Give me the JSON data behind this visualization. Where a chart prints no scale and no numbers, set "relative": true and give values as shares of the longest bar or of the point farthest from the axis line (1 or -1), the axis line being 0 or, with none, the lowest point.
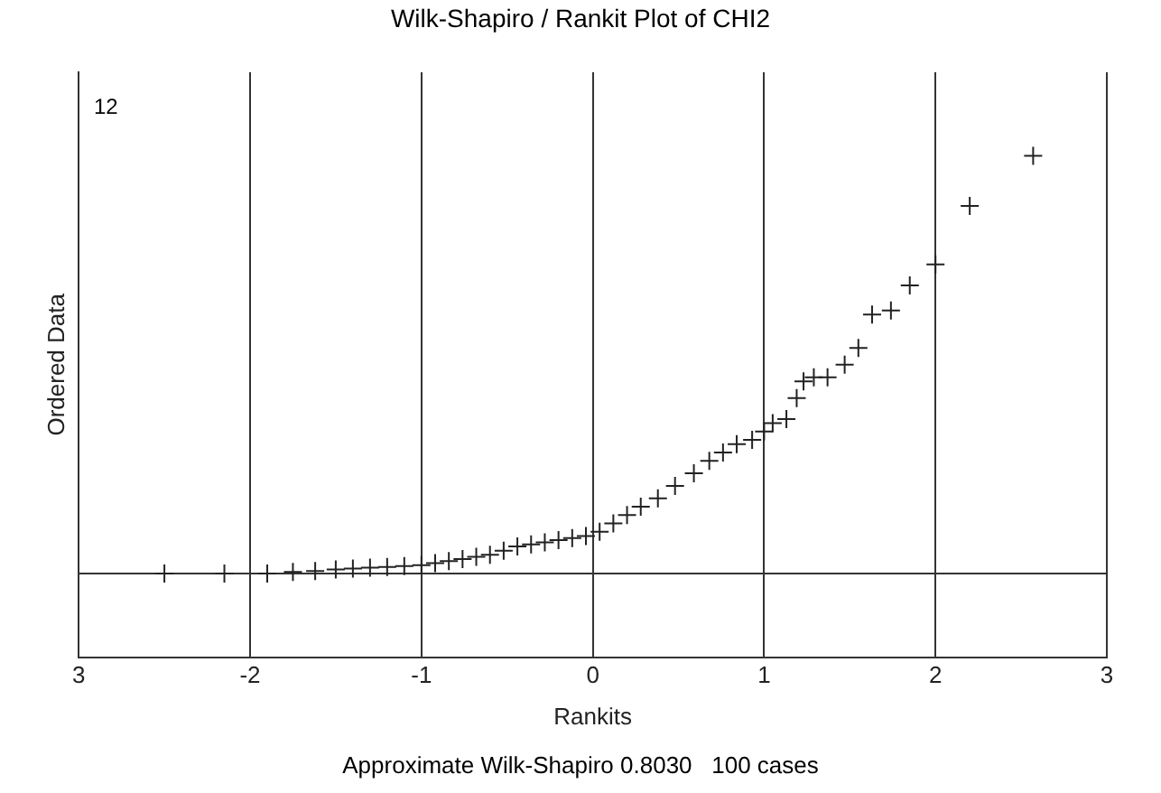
{
  "chart_data": {
    "type": "scatter",
    "title": "Wilk-Shapiro / Rankit Plot of CHI2",
    "xlabel": "Rankits",
    "ylabel": "Ordered Data",
    "relative": true,
    "marker": "cross",
    "grid": "x",
    "xlim": [
      -3,
      3
    ],
    "xticks": [
      {
        "value": -3,
        "label": "3"
      },
      -2,
      -1,
      0,
      1,
      2,
      3
    ],
    "annotations": [
      "12",
      "Approximate Wilk-Shapiro 0.8030   100 cases"
    ],
    "series": [
      {
        "color": "#222222",
        "x": [
          -2.5,
          -2.15,
          -1.9,
          -1.75,
          -1.62,
          -1.5,
          -1.4,
          -1.3,
          -1.2,
          -1.1,
          -1.0,
          -0.92,
          -0.84,
          -0.76,
          -0.68,
          -0.6,
          -0.52,
          -0.44,
          -0.36,
          -0.28,
          -0.2,
          -0.12,
          -0.04,
          0.04,
          0.12,
          0.2,
          0.28,
          0.38,
          0.48,
          0.59,
          0.68,
          0.76,
          0.84,
          0.93,
          1.0,
          1.05,
          1.13,
          1.19,
          1.23,
          1.29,
          1.37,
          1.47,
          1.55,
          1.63,
          1.74,
          1.85,
          2.0,
          2.2,
          2.57
        ],
        "values": [
          0,
          0,
          0,
          0.004,
          0.006,
          0.01,
          0.012,
          0.014,
          0.016,
          0.018,
          0.02,
          0.025,
          0.03,
          0.035,
          0.04,
          0.045,
          0.055,
          0.065,
          0.07,
          0.075,
          0.08,
          0.085,
          0.09,
          0.1,
          0.12,
          0.14,
          0.16,
          0.18,
          0.21,
          0.24,
          0.27,
          0.29,
          0.31,
          0.32,
          0.34,
          0.36,
          0.37,
          0.42,
          0.46,
          0.47,
          0.47,
          0.5,
          0.54,
          0.62,
          0.63,
          0.69,
          0.74,
          0.88,
          1
        ]
      }
    ]
  }
}
